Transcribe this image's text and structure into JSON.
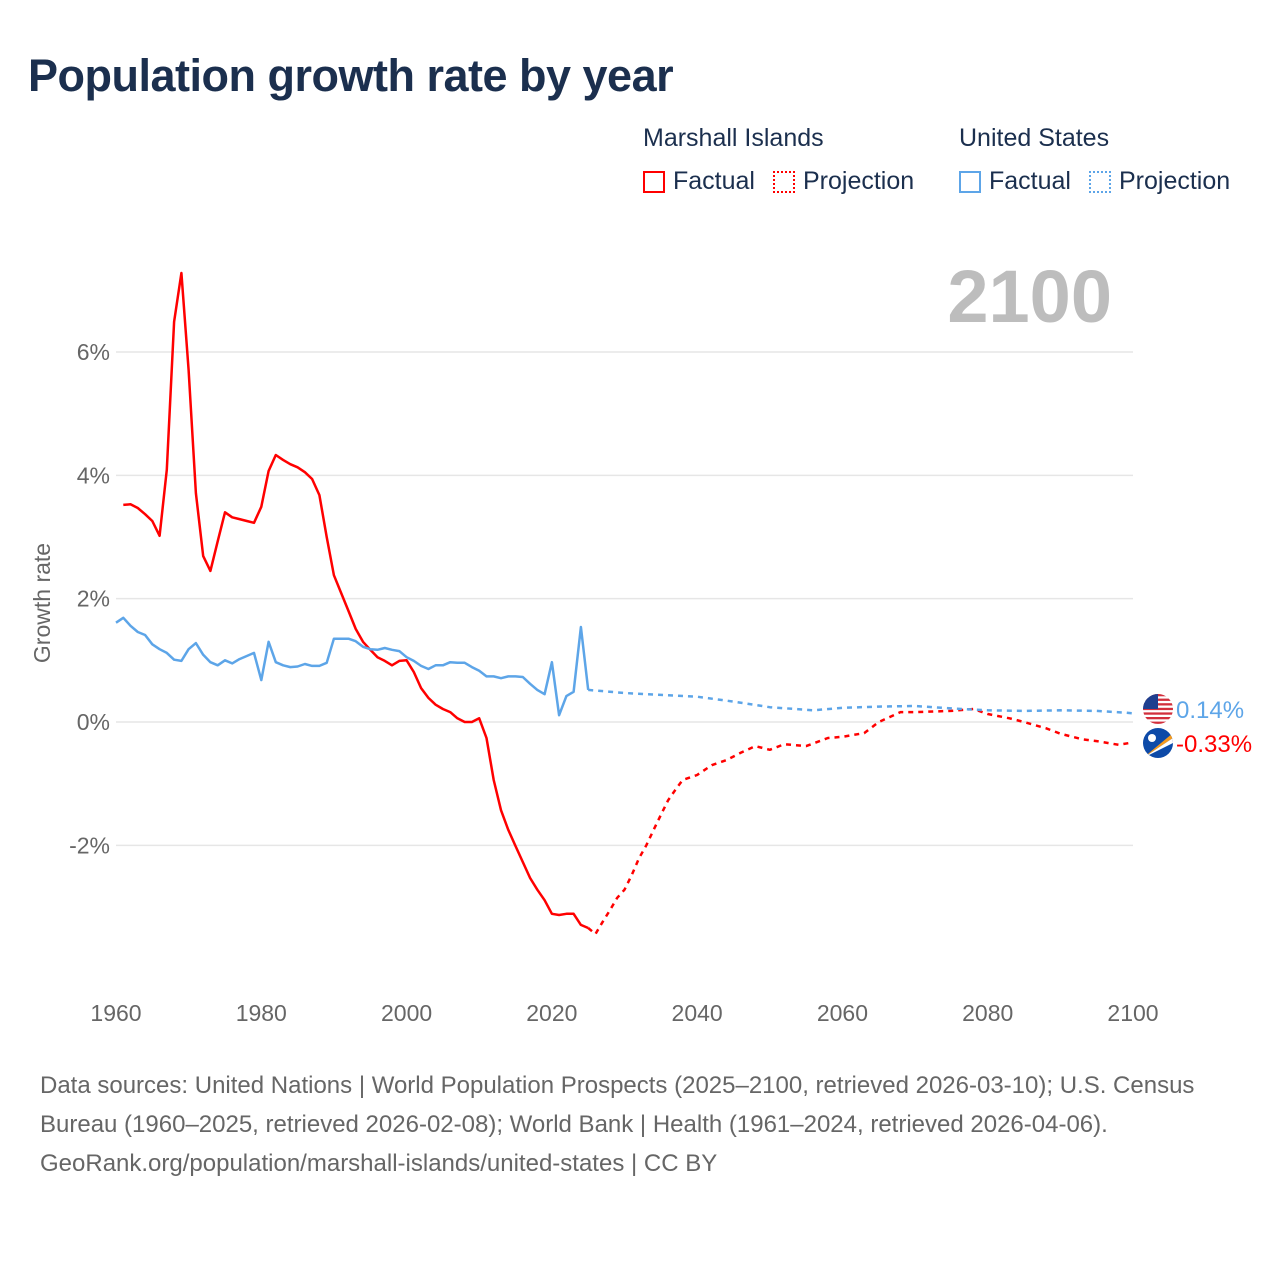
{
  "title": "Population growth rate by year",
  "legend": {
    "groups": [
      {
        "name": "Marshall Islands",
        "color": "#ff0000",
        "factual": "Factual",
        "projection": "Projection"
      },
      {
        "name": "United States",
        "color": "#5da5e8",
        "factual": "Factual",
        "projection": "Projection"
      }
    ]
  },
  "year_display": "2100",
  "chart_data": {
    "type": "line",
    "title": "Population growth rate by year",
    "xlabel": "",
    "ylabel": "Growth rate",
    "xlim": [
      1960,
      2100
    ],
    "ylim": [
      -4.2,
      7.5
    ],
    "grid": true,
    "x_ticks": [
      1960,
      1980,
      2000,
      2020,
      2040,
      2060,
      2080,
      2100
    ],
    "x_tick_labels": [
      "1960",
      "1980",
      "2000",
      "2020",
      "2040",
      "2060",
      "2080",
      "2100"
    ],
    "y_ticks": [
      6,
      4,
      2,
      0,
      -2
    ],
    "y_tick_labels": [
      "6%",
      "4%",
      "2%",
      "0%",
      "-2%"
    ],
    "legend_position": "top-right",
    "series": [
      {
        "name": "Marshall Islands",
        "kind": "factual",
        "color": "#ff0000",
        "x": [
          1961,
          1962,
          1963,
          1964,
          1965,
          1966,
          1967,
          1968,
          1969,
          1970,
          1971,
          1972,
          1973,
          1974,
          1975,
          1976,
          1977,
          1978,
          1979,
          1980,
          1981,
          1982,
          1983,
          1984,
          1985,
          1986,
          1987,
          1988,
          1989,
          1990,
          1991,
          1992,
          1993,
          1994,
          1995,
          1996,
          1997,
          1998,
          1999,
          2000,
          2001,
          2002,
          2003,
          2004,
          2005,
          2006,
          2007,
          2008,
          2009,
          2010,
          2011,
          2012,
          2013,
          2014,
          2015,
          2016,
          2017,
          2018,
          2019,
          2020,
          2021,
          2022,
          2023,
          2024,
          2025
        ],
        "y": [
          3.52,
          3.53,
          3.47,
          3.37,
          3.26,
          3.02,
          4.09,
          6.49,
          7.28,
          5.71,
          3.71,
          2.69,
          2.45,
          2.93,
          3.4,
          3.32,
          3.29,
          3.26,
          3.23,
          3.49,
          4.07,
          4.33,
          4.25,
          4.18,
          4.13,
          4.05,
          3.94,
          3.68,
          3.0,
          2.38,
          2.09,
          1.8,
          1.51,
          1.3,
          1.17,
          1.05,
          0.99,
          0.92,
          0.99,
          1.0,
          0.81,
          0.55,
          0.39,
          0.28,
          0.21,
          0.16,
          0.06,
          0.0,
          0.0,
          0.06,
          -0.26,
          -0.94,
          -1.43,
          -1.75,
          -2.01,
          -2.27,
          -2.53,
          -2.72,
          -2.89,
          -3.11,
          -3.13,
          -3.11,
          -3.11,
          -3.29,
          -3.34
        ]
      },
      {
        "name": "Marshall Islands",
        "kind": "projection",
        "color": "#ff0000",
        "x": [
          2025,
          2026,
          2027,
          2028,
          2029,
          2030,
          2031,
          2032,
          2033,
          2034,
          2035,
          2036,
          2037,
          2038,
          2040,
          2042,
          2044,
          2046,
          2048,
          2050,
          2052,
          2055,
          2058,
          2060,
          2063,
          2065,
          2068,
          2070,
          2075,
          2078,
          2080,
          2083,
          2085,
          2088,
          2090,
          2093,
          2095,
          2098,
          2100
        ],
        "y": [
          -3.34,
          -3.44,
          -3.24,
          -3.05,
          -2.85,
          -2.72,
          -2.48,
          -2.21,
          -2.0,
          -1.75,
          -1.51,
          -1.27,
          -1.1,
          -0.94,
          -0.86,
          -0.7,
          -0.62,
          -0.5,
          -0.39,
          -0.45,
          -0.36,
          -0.39,
          -0.26,
          -0.24,
          -0.18,
          0.0,
          0.16,
          0.16,
          0.18,
          0.21,
          0.13,
          0.06,
          0.0,
          -0.1,
          -0.19,
          -0.28,
          -0.31,
          -0.37,
          -0.33
        ]
      },
      {
        "name": "United States",
        "kind": "factual",
        "color": "#5da5e8",
        "x": [
          1960,
          1961,
          1962,
          1963,
          1964,
          1965,
          1966,
          1967,
          1968,
          1969,
          1970,
          1971,
          1972,
          1973,
          1974,
          1975,
          1976,
          1977,
          1978,
          1979,
          1980,
          1981,
          1982,
          1983,
          1984,
          1985,
          1986,
          1987,
          1988,
          1989,
          1990,
          1991,
          1992,
          1993,
          1994,
          1995,
          1996,
          1997,
          1998,
          1999,
          2000,
          2001,
          2002,
          2003,
          2004,
          2005,
          2006,
          2007,
          2008,
          2009,
          2010,
          2011,
          2012,
          2013,
          2014,
          2015,
          2016,
          2017,
          2018,
          2019,
          2020,
          2021,
          2022,
          2023,
          2024,
          2025
        ],
        "y": [
          1.61,
          1.69,
          1.56,
          1.46,
          1.41,
          1.26,
          1.18,
          1.12,
          1.01,
          0.99,
          1.18,
          1.28,
          1.09,
          0.97,
          0.92,
          1.0,
          0.95,
          1.02,
          1.07,
          1.12,
          0.68,
          1.3,
          0.97,
          0.92,
          0.89,
          0.9,
          0.94,
          0.91,
          0.91,
          0.96,
          1.35,
          1.35,
          1.35,
          1.31,
          1.22,
          1.18,
          1.17,
          1.2,
          1.17,
          1.15,
          1.05,
          0.99,
          0.91,
          0.86,
          0.92,
          0.92,
          0.97,
          0.96,
          0.96,
          0.89,
          0.83,
          0.74,
          0.74,
          0.71,
          0.74,
          0.74,
          0.73,
          0.62,
          0.52,
          0.45,
          0.97,
          0.11,
          0.42,
          0.49,
          1.54,
          0.52
        ]
      },
      {
        "name": "United States",
        "kind": "projection",
        "color": "#5da5e8",
        "x": [
          2025,
          2030,
          2035,
          2040,
          2045,
          2050,
          2056,
          2060,
          2065,
          2070,
          2075,
          2080,
          2085,
          2090,
          2095,
          2099,
          2100
        ],
        "y": [
          0.52,
          0.47,
          0.44,
          0.41,
          0.33,
          0.24,
          0.19,
          0.23,
          0.25,
          0.26,
          0.22,
          0.19,
          0.18,
          0.19,
          0.18,
          0.15,
          0.14
        ]
      }
    ],
    "end_labels": [
      {
        "series": "United States",
        "text": "0.14%",
        "value": 0.14,
        "color": "#5da5e8",
        "flag": "us-flag-icon"
      },
      {
        "series": "Marshall Islands",
        "text": "-0.33%",
        "value": -0.33,
        "color": "#ff0000",
        "flag": "marshall-islands-flag-icon"
      }
    ]
  },
  "footer": {
    "sources": "Data sources: United Nations | World Population Prospects (2025–2100, retrieved 2026-03-10); U.S. Census Bureau (1960–2025, retrieved 2026-02-08); World Bank | Health (1961–2024, retrieved 2026-04-06).",
    "credit": "GeoRank.org/population/marshall-islands/united-states | CC BY"
  }
}
